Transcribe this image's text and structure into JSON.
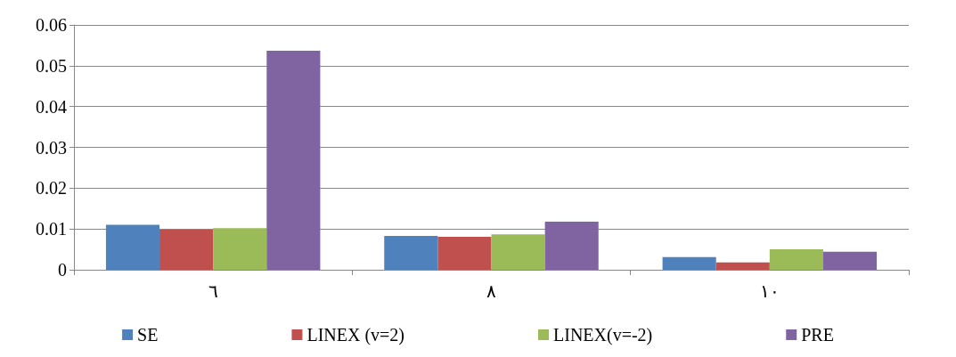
{
  "chart_data": {
    "type": "bar",
    "categories": [
      "٦",
      "٨",
      "١٠"
    ],
    "series": [
      {
        "name": "SE",
        "color": "#4f81bd",
        "values": [
          0.011,
          0.0083,
          0.0031
        ]
      },
      {
        "name": "LINEX (v=2)",
        "color": "#c0504d",
        "values": [
          0.0098,
          0.0081,
          0.0018
        ]
      },
      {
        "name": "LINEX(v=-2)",
        "color": "#9bbb59",
        "values": [
          0.0102,
          0.0087,
          0.005
        ]
      },
      {
        "name": "PRE",
        "color": "#8064a2",
        "values": [
          0.0537,
          0.0118,
          0.0044
        ]
      }
    ],
    "ylim": [
      0,
      0.06
    ],
    "yticks": [
      0,
      0.01,
      0.02,
      0.03,
      0.04,
      0.05,
      0.06
    ],
    "grid": "y",
    "legend": "bottom"
  }
}
